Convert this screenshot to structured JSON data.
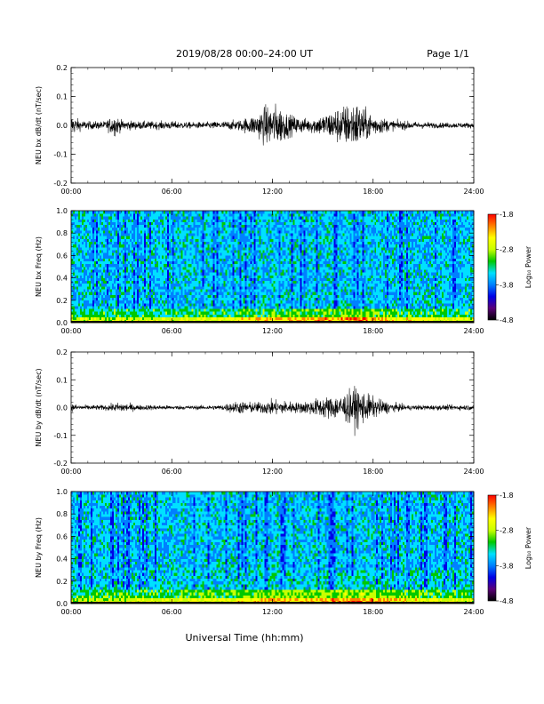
{
  "header": {
    "title": "2019/08/28  00:00–24:00 UT",
    "page": "Page 1/1"
  },
  "xlabel": "Universal Time (hh:mm)",
  "colors": {
    "trace": "#000000",
    "colormap": [
      "#000000",
      "#5a0078",
      "#0000e6",
      "#0080ff",
      "#00e0ff",
      "#00c800",
      "#c8ff00",
      "#ffff00",
      "#ff8000",
      "#ff0000"
    ]
  },
  "chart_data": [
    {
      "type": "line",
      "ylabel": "NEU bx dB/dt (nT/sec)",
      "xlim": [
        0,
        24
      ],
      "ylim": [
        -0.2,
        0.2
      ],
      "x_ticks": [
        "00:00",
        "06:00",
        "12:00",
        "18:00",
        "24:00"
      ],
      "y_ticks": [
        "0.2",
        "0.1",
        "0.0",
        "-0.1",
        "-0.2"
      ],
      "y_tick_values": [
        0.2,
        0.1,
        0.0,
        -0.1,
        -0.2
      ],
      "envelope": {
        "x_hours": [
          0,
          0.5,
          1,
          2,
          2.6,
          3,
          4,
          5,
          6,
          7,
          8,
          9,
          10,
          11,
          11.5,
          12,
          12.5,
          13,
          14,
          15,
          16,
          16.5,
          17,
          17.5,
          18,
          19,
          20,
          21,
          22,
          23,
          24
        ],
        "amplitude": [
          0.04,
          0.02,
          0.015,
          0.015,
          0.04,
          0.02,
          0.015,
          0.015,
          0.015,
          0.012,
          0.012,
          0.015,
          0.02,
          0.04,
          0.07,
          0.08,
          0.07,
          0.04,
          0.025,
          0.04,
          0.07,
          0.08,
          0.09,
          0.06,
          0.04,
          0.02,
          0.015,
          0.012,
          0.01,
          0.01,
          0.01
        ]
      }
    },
    {
      "type": "heatmap",
      "ylabel": "NEU bx Freq (Hz)",
      "xlim": [
        0,
        24
      ],
      "ylim": [
        0.0,
        1.0
      ],
      "x_ticks": [
        "00:00",
        "06:00",
        "12:00",
        "18:00",
        "24:00"
      ],
      "y_ticks": [
        "1.0",
        "0.8",
        "0.6",
        "0.4",
        "0.2",
        "0.0"
      ],
      "y_tick_values": [
        1.0,
        0.8,
        0.6,
        0.4,
        0.2,
        0.0
      ],
      "colorbar": {
        "label": "Log₁₀ Power",
        "ticks": [
          "-1.8",
          "-2.8",
          "-3.8",
          "-4.8"
        ],
        "tick_values": [
          -1.8,
          -2.8,
          -3.8,
          -4.8
        ],
        "range": [
          -4.8,
          -1.8
        ]
      }
    },
    {
      "type": "line",
      "ylabel": "NEU by dB/dt (nT/sec)",
      "xlim": [
        0,
        24
      ],
      "ylim": [
        -0.2,
        0.2
      ],
      "x_ticks": [
        "00:00",
        "06:00",
        "12:00",
        "18:00",
        "24:00"
      ],
      "y_ticks": [
        "0.2",
        "0.1",
        "0.0",
        "-0.1",
        "-0.2"
      ],
      "y_tick_values": [
        0.2,
        0.1,
        0.0,
        -0.1,
        -0.2
      ],
      "envelope": {
        "x_hours": [
          0,
          0.5,
          1,
          2,
          3,
          4,
          5,
          6,
          7,
          8,
          9,
          9.5,
          10,
          11,
          12,
          13,
          13.5,
          14,
          15,
          16,
          16.5,
          17,
          17.5,
          18,
          19,
          20,
          21,
          22,
          23,
          24
        ],
        "amplitude": [
          0.015,
          0.01,
          0.01,
          0.01,
          0.02,
          0.01,
          0.01,
          0.008,
          0.008,
          0.008,
          0.01,
          0.02,
          0.025,
          0.02,
          0.03,
          0.025,
          0.02,
          0.025,
          0.04,
          0.05,
          0.06,
          0.08,
          0.06,
          0.04,
          0.02,
          0.01,
          0.01,
          0.01,
          0.01,
          0.01
        ]
      }
    },
    {
      "type": "heatmap",
      "ylabel": "NEU by Freq (Hz)",
      "xlim": [
        0,
        24
      ],
      "ylim": [
        0.0,
        1.0
      ],
      "x_ticks": [
        "00:00",
        "06:00",
        "12:00",
        "18:00",
        "24:00"
      ],
      "y_ticks": [
        "1.0",
        "0.8",
        "0.6",
        "0.4",
        "0.2",
        "0.0"
      ],
      "y_tick_values": [
        1.0,
        0.8,
        0.6,
        0.4,
        0.2,
        0.0
      ],
      "colorbar": {
        "label": "Log₁₀ Power",
        "ticks": [
          "-1.8",
          "-2.8",
          "-3.8",
          "-4.8"
        ],
        "tick_values": [
          -1.8,
          -2.8,
          -3.8,
          -4.8
        ],
        "range": [
          -4.8,
          -1.8
        ]
      }
    }
  ]
}
